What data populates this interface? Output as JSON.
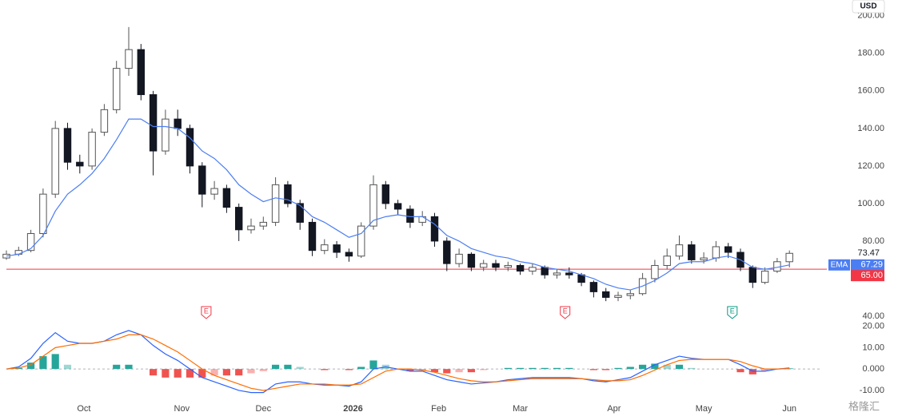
{
  "chart_data": [
    {
      "type": "candlestick",
      "currency": "USD",
      "x": [
        0,
        3,
        6,
        9,
        12,
        15,
        18,
        21,
        24,
        27,
        30,
        33,
        36,
        39,
        42,
        45,
        48,
        51,
        54,
        57,
        60,
        63,
        66,
        69,
        72,
        75,
        78,
        81,
        84,
        87,
        90,
        93,
        96,
        99,
        102,
        105,
        108,
        111,
        114,
        117,
        120,
        123,
        126,
        129,
        132,
        135,
        138,
        141,
        144,
        147,
        150,
        153,
        156,
        159,
        162,
        165,
        168,
        171,
        174,
        177,
        180,
        183,
        186,
        189,
        192
      ],
      "open": [
        71,
        73,
        75,
        84,
        105,
        140,
        122,
        120,
        138,
        150,
        172,
        182,
        158,
        128,
        145,
        140,
        120,
        105,
        108,
        98,
        86,
        88,
        90,
        110,
        100,
        90,
        75,
        78,
        74,
        72,
        88,
        110,
        100,
        97,
        90,
        93,
        80,
        68,
        73,
        66,
        68,
        66,
        67,
        64,
        66,
        62,
        63,
        62,
        58,
        53,
        50,
        51,
        52,
        60,
        67,
        72,
        78,
        70,
        71,
        77,
        74,
        66,
        58,
        64,
        69
      ],
      "high": [
        75,
        77,
        86,
        108,
        144,
        143,
        126,
        140,
        153,
        176,
        194,
        185,
        160,
        150,
        150,
        142,
        122,
        112,
        110,
        100,
        92,
        93,
        114,
        112,
        102,
        92,
        81,
        80,
        76,
        90,
        115,
        112,
        102,
        99,
        96,
        95,
        82,
        76,
        74,
        70,
        70,
        69,
        68,
        68,
        67,
        65,
        66,
        63,
        59,
        55,
        53,
        54,
        63,
        70,
        76,
        83,
        80,
        74,
        80,
        79,
        76,
        67,
        66,
        71,
        75
      ],
      "low": [
        70,
        72,
        74,
        82,
        103,
        118,
        116,
        118,
        136,
        148,
        168,
        155,
        115,
        126,
        136,
        116,
        98,
        102,
        95,
        80,
        84,
        86,
        88,
        98,
        86,
        72,
        73,
        71,
        69,
        71,
        86,
        97,
        94,
        87,
        88,
        77,
        64,
        66,
        64,
        64,
        64,
        64,
        62,
        62,
        60,
        60,
        60,
        56,
        50,
        48,
        48,
        49,
        51,
        58,
        65,
        70,
        68,
        68,
        69,
        71,
        64,
        55,
        57,
        63,
        66
      ],
      "close": [
        73,
        75,
        84,
        105,
        140,
        122,
        120,
        138,
        150,
        172,
        182,
        158,
        128,
        145,
        140,
        120,
        105,
        108,
        98,
        86,
        88,
        90,
        110,
        100,
        90,
        75,
        78,
        74,
        72,
        88,
        110,
        100,
        97,
        90,
        93,
        80,
        68,
        73,
        66,
        68,
        66,
        67,
        64,
        66,
        62,
        63,
        62,
        58,
        53,
        50,
        51,
        52,
        60,
        67,
        72,
        78,
        70,
        71,
        77,
        74,
        66,
        58,
        64,
        69,
        73.47
      ],
      "up_color": "#ffffff",
      "down_color": "#131722",
      "outline_color": "#555555",
      "series": [
        {
          "name": "EMA",
          "color": "#4c7ef3",
          "values": [
            72,
            73,
            76,
            83,
            96,
            105,
            110,
            116,
            124,
            134,
            145,
            145,
            141,
            141,
            140,
            135,
            128,
            124,
            118,
            110,
            105,
            101,
            103,
            102,
            99,
            93,
            90,
            86,
            82,
            84,
            91,
            93,
            94,
            93,
            93,
            89,
            83,
            80,
            76,
            74,
            72,
            71,
            69,
            68,
            66,
            65,
            64,
            62,
            60,
            57,
            55,
            54,
            56,
            59,
            63,
            68,
            69,
            69,
            71,
            72,
            70,
            66,
            65,
            66,
            67.29
          ]
        }
      ],
      "last_price": 73.47,
      "ema_last": 67.29,
      "hline": {
        "value": 65,
        "label": "65.00",
        "color": "#f23645"
      },
      "earnings": [
        {
          "x": 49,
          "label": "E",
          "color": "#f23645"
        },
        {
          "x": 137,
          "label": "E",
          "color": "#f23645"
        },
        {
          "x": 178,
          "label": "E",
          "color": "#089981"
        }
      ],
      "xlim": [
        0,
        200
      ],
      "ylim": [
        37,
        208
      ],
      "yticks": [
        {
          "value": 200,
          "label": "200.00"
        },
        {
          "value": 180,
          "label": "180.00"
        },
        {
          "value": 160,
          "label": "160.00"
        },
        {
          "value": 140,
          "label": "140.00"
        },
        {
          "value": 120,
          "label": "120.00"
        },
        {
          "value": 100,
          "label": "100.00"
        },
        {
          "value": 80,
          "label": "80.00"
        },
        {
          "value": 40,
          "label": "40.00"
        }
      ]
    },
    {
      "type": "macd",
      "x": [
        0,
        3,
        6,
        9,
        12,
        15,
        18,
        21,
        24,
        27,
        30,
        33,
        36,
        39,
        42,
        45,
        48,
        51,
        54,
        57,
        60,
        63,
        66,
        69,
        72,
        75,
        78,
        81,
        84,
        87,
        90,
        93,
        96,
        99,
        102,
        105,
        108,
        111,
        114,
        117,
        120,
        123,
        126,
        129,
        132,
        135,
        138,
        141,
        144,
        147,
        150,
        153,
        156,
        159,
        162,
        165,
        168,
        171,
        174,
        177,
        180,
        183,
        186,
        189,
        192
      ],
      "histogram": [
        0,
        0.5,
        3,
        6,
        7,
        2,
        0,
        0,
        0,
        2,
        2,
        0,
        -3,
        -4,
        -4,
        -4,
        -4,
        -3,
        -3,
        -3,
        -2,
        -1,
        2,
        2,
        1,
        0,
        -0.5,
        0,
        -0.5,
        1,
        4,
        2,
        0,
        -1,
        -0.5,
        -1.5,
        -2,
        -1.5,
        -1.5,
        -0.5,
        0,
        0.5,
        0.5,
        0.5,
        0.5,
        0.5,
        0.5,
        0,
        -0.5,
        -0.5,
        0.5,
        1,
        2,
        2.5,
        2,
        2,
        0.5,
        0,
        0,
        0,
        -1.5,
        -2.5,
        -1,
        0,
        0.3
      ],
      "hist_colors": {
        "positive": "#26a69a",
        "negative": "#ef5350"
      },
      "series": [
        {
          "color": "#2962ff",
          "values": [
            0,
            1,
            5,
            12,
            17,
            13,
            12,
            12,
            13,
            16,
            18,
            16,
            11,
            7,
            4,
            0,
            -4,
            -6,
            -8,
            -10,
            -11,
            -11,
            -7,
            -6,
            -6,
            -7,
            -7.5,
            -7.5,
            -8,
            -6,
            0,
            1,
            0,
            -1,
            -1,
            -3,
            -5,
            -6,
            -7,
            -6.5,
            -6,
            -5,
            -4.5,
            -4,
            -4,
            -4,
            -4,
            -4.5,
            -5.5,
            -6,
            -5,
            -4,
            -1,
            2,
            4,
            6,
            5,
            4.5,
            4.5,
            4.5,
            2,
            -1,
            -1,
            0,
            0.5
          ]
        },
        {
          "color": "#ff6d00",
          "values": [
            0,
            0.5,
            2,
            6,
            10,
            11,
            12,
            12,
            13,
            14,
            16,
            16,
            14,
            11,
            8,
            4,
            0,
            -3,
            -5,
            -7,
            -9,
            -10,
            -9,
            -8,
            -7,
            -7,
            -7,
            -7.5,
            -7.5,
            -7,
            -4,
            -1,
            0,
            0,
            -0.5,
            -1.5,
            -3,
            -4.5,
            -5.5,
            -6,
            -6,
            -5.5,
            -5,
            -4.5,
            -4.5,
            -4.5,
            -4.5,
            -4.5,
            -5,
            -5.5,
            -5.5,
            -5,
            -3,
            -0.5,
            2,
            4,
            4.5,
            4.5,
            4.5,
            4.5,
            3.5,
            1.5,
            0,
            0,
            0.2
          ]
        }
      ],
      "xlim": [
        0,
        200
      ],
      "ylim": [
        -13,
        21.7
      ],
      "yticks": [
        {
          "value": 20,
          "label": "20.00"
        },
        {
          "value": 10,
          "label": "10.00"
        },
        {
          "value": 0,
          "label": "0.000"
        },
        {
          "value": -10,
          "label": "-10.00"
        }
      ],
      "xticks": [
        {
          "value": 19,
          "label": "Oct"
        },
        {
          "value": 43,
          "label": "Nov"
        },
        {
          "value": 63,
          "label": "Dec"
        },
        {
          "value": 85,
          "label": "2026"
        },
        {
          "value": 106,
          "label": "Feb"
        },
        {
          "value": 126,
          "label": "Mar"
        },
        {
          "value": 149,
          "label": "Apr"
        },
        {
          "value": 171,
          "label": "May"
        },
        {
          "value": 192,
          "label": "Jun"
        }
      ]
    }
  ],
  "watermark": "格隆汇"
}
